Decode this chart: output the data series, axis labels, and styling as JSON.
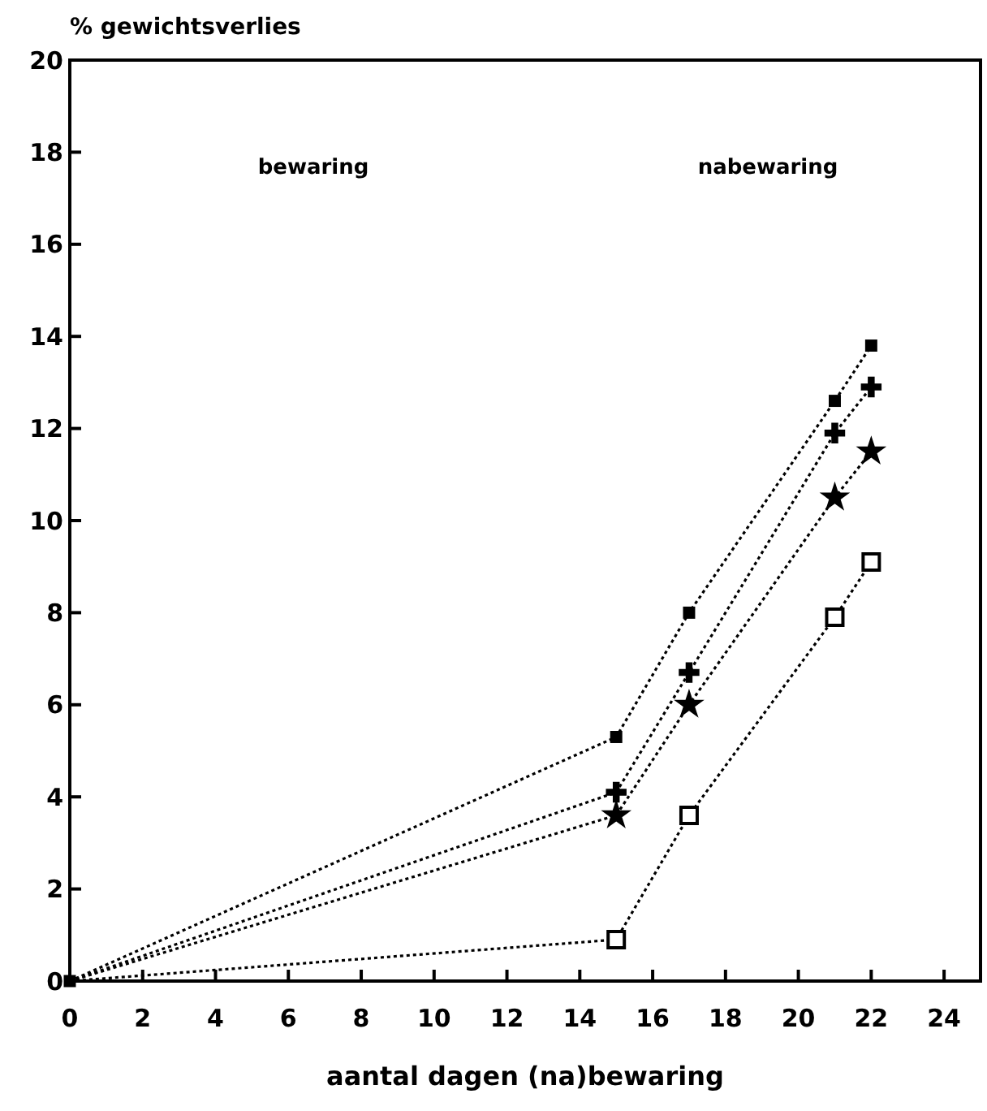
{
  "chart_data": {
    "type": "line",
    "xlabel": "aantal dagen (na)bewaring",
    "ylabel": "% gewichtsverlies",
    "xlim": [
      0,
      25
    ],
    "xticks": [
      0,
      2,
      4,
      6,
      8,
      10,
      12,
      14,
      16,
      18,
      20,
      22,
      24
    ],
    "ylim": [
      0,
      20
    ],
    "yticks": [
      0,
      2,
      4,
      6,
      8,
      10,
      12,
      14,
      16,
      18,
      20
    ],
    "grid": false,
    "line_style": "dotted",
    "annotations": [
      "bewaring",
      "nabewaring"
    ],
    "series": [
      {
        "color": "#000000",
        "marker": "square",
        "x": [
          0,
          15,
          17,
          21,
          22
        ],
        "values": [
          0,
          5.3,
          8.0,
          12.6,
          13.8
        ]
      },
      {
        "color": "#000000",
        "marker": "cross",
        "x": [
          0,
          15,
          17,
          21,
          22
        ],
        "values": [
          0,
          4.1,
          6.7,
          11.9,
          12.9
        ]
      },
      {
        "color": "#000000",
        "marker": "star",
        "x": [
          0,
          15,
          17,
          21,
          22
        ],
        "values": [
          0,
          3.6,
          6.0,
          10.5,
          11.5
        ]
      },
      {
        "color": "#000000",
        "marker": "square",
        "x": [
          0,
          15,
          17,
          21,
          22
        ],
        "values": [
          0,
          0.9,
          3.6,
          7.9,
          9.1
        ]
      }
    ]
  }
}
